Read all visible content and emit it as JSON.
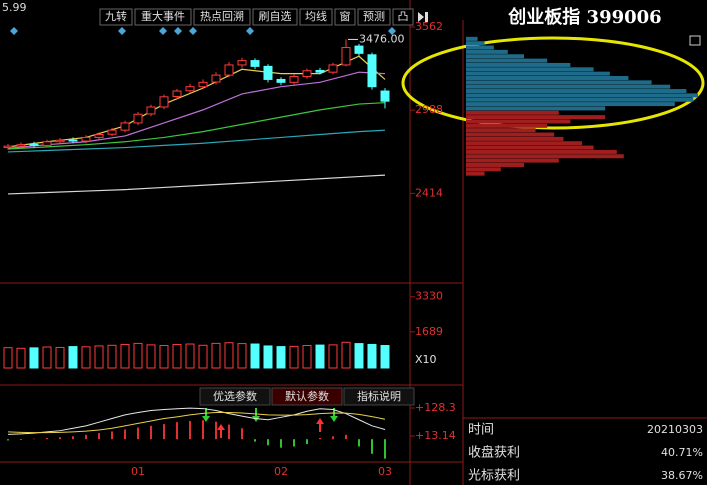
{
  "toolbar": {
    "left_value": "5.99",
    "buttons": [
      "九转",
      "重大事件",
      "热点回溯",
      "刷自选",
      "均线",
      "窗",
      "预测",
      "凸"
    ]
  },
  "chart_data": [
    {
      "type": "candlestick",
      "open": [
        2730,
        2740,
        2752,
        2745,
        2770,
        2782,
        2775,
        2800,
        2822,
        2850,
        2900,
        2962,
        3010,
        3082,
        3122,
        3150,
        3182,
        3230,
        3300,
        3330,
        3290,
        3200,
        3180,
        3220,
        3262,
        3250,
        3300,
        3430,
        3370,
        3120
      ],
      "high": [
        2755,
        2765,
        2770,
        2785,
        2795,
        2800,
        2815,
        2835,
        2865,
        2915,
        2975,
        3025,
        3095,
        3135,
        3170,
        3200,
        3250,
        3320,
        3350,
        3345,
        3305,
        3215,
        3235,
        3275,
        3280,
        3315,
        3476,
        3445,
        3385,
        3140
      ],
      "low": [
        2715,
        2725,
        2730,
        2735,
        2755,
        2760,
        2760,
        2785,
        2810,
        2835,
        2885,
        2945,
        2995,
        3065,
        3105,
        3135,
        3165,
        3215,
        3280,
        3270,
        3180,
        3160,
        3165,
        3205,
        3235,
        3235,
        3290,
        3360,
        3130,
        3000
      ],
      "close": [
        2740,
        2750,
        2745,
        2770,
        2780,
        2775,
        2800,
        2820,
        2850,
        2900,
        2960,
        3010,
        3080,
        3120,
        3150,
        3180,
        3230,
        3300,
        3330,
        3290,
        3200,
        3180,
        3220,
        3260,
        3250,
        3300,
        3420,
        3380,
        3150,
        3050
      ],
      "up_color": "#ff3c3c",
      "down_color": "#54ffff",
      "categories": [
        null,
        null,
        null,
        null,
        null,
        null,
        null,
        null,
        null,
        null,
        "01",
        null,
        null,
        null,
        null,
        null,
        null,
        null,
        null,
        null,
        null,
        "02",
        null,
        null,
        null,
        null,
        null,
        null,
        null,
        "03"
      ],
      "ylim": [
        1851,
        3610
      ],
      "yticks": [
        2414,
        2988,
        3562
      ],
      "annotation": {
        "value": 3476,
        "label": "3476.00"
      },
      "lines": [
        {
          "color": "#e8d04a",
          "x": [
            0,
            3,
            6,
            9,
            12,
            15,
            18,
            21,
            24,
            27,
            29
          ],
          "values": [
            2735,
            2770,
            2800,
            2880,
            3030,
            3140,
            3270,
            3240,
            3240,
            3360,
            3200
          ]
        },
        {
          "color": "#c070d8",
          "x": [
            0,
            3,
            6,
            9,
            12,
            15,
            18,
            21,
            24,
            27,
            29
          ],
          "values": [
            2725,
            2750,
            2770,
            2810,
            2900,
            2990,
            3100,
            3150,
            3180,
            3250,
            3240
          ]
        },
        {
          "color": "#3cc83c",
          "x": [
            0,
            3,
            6,
            9,
            12,
            15,
            18,
            21,
            24,
            27,
            29
          ],
          "values": [
            2720,
            2735,
            2750,
            2770,
            2800,
            2840,
            2890,
            2940,
            2990,
            3030,
            3040
          ]
        },
        {
          "color": "#2aa8b8",
          "x": [
            0,
            3,
            6,
            9,
            12,
            15,
            18,
            21,
            24,
            27,
            29
          ],
          "values": [
            2700,
            2710,
            2720,
            2730,
            2745,
            2760,
            2780,
            2800,
            2820,
            2840,
            2850
          ]
        },
        {
          "color": "#d8d8d8",
          "x": [
            0,
            3,
            6,
            9,
            12,
            15,
            18,
            21,
            24,
            27,
            29
          ],
          "values": [
            2410,
            2420,
            2430,
            2440,
            2455,
            2470,
            2485,
            2500,
            2515,
            2530,
            2540
          ]
        }
      ]
    },
    {
      "type": "bar",
      "ylabel": "X10",
      "values": [
        950,
        920,
        940,
        980,
        960,
        1000,
        990,
        1030,
        1060,
        1100,
        1150,
        1080,
        1050,
        1100,
        1120,
        1060,
        1150,
        1180,
        1140,
        1120,
        1030,
        1000,
        1010,
        1050,
        1070,
        1080,
        1200,
        1140,
        1100,
        1050
      ],
      "ylim": [
        0,
        3877
      ],
      "yticks": [
        1689,
        3330
      ]
    },
    {
      "type": "histogram-lines",
      "tabs": [
        "优选参数",
        "默认参数",
        "指标说明"
      ],
      "values": [
        -5,
        -3,
        2,
        5,
        8,
        12,
        18,
        25,
        32,
        40,
        48,
        55,
        62,
        70,
        75,
        78,
        72,
        60,
        45,
        -10,
        -25,
        -35,
        -30,
        -20,
        5,
        12,
        18,
        -30,
        -60,
        -80
      ],
      "up_color": "#e03030",
      "down_color": "#30c030",
      "lines": [
        {
          "color": "#e8e8e8",
          "values": [
            20,
            22,
            25,
            30,
            35,
            45,
            55,
            70,
            85,
            100,
            110,
            118,
            122,
            125,
            128,
            126,
            118,
            105,
            95,
            85,
            80,
            90,
            100,
            115,
            125,
            122,
            105,
            80,
            55,
            40
          ]
        },
        {
          "color": "#e8d04a",
          "values": [
            30,
            28,
            27,
            27,
            28,
            30,
            33,
            38,
            45,
            55,
            65,
            75,
            85,
            92,
            100,
            106,
            110,
            110,
            108,
            104,
            100,
            99,
            99,
            101,
            105,
            108,
            107,
            102,
            93,
            82
          ]
        }
      ],
      "ylim": [
        -93.8,
        210.6
      ],
      "yticks": [
        {
          "value": 13.14,
          "label": "+13.14"
        },
        {
          "value": 128.3,
          "label": "+128.3"
        }
      ]
    },
    {
      "type": "horizontal-bar",
      "ylim": [
        1851,
        3610
      ],
      "xlim": [
        0,
        100
      ],
      "series": [
        {
          "color": "#1e6b8a",
          "prices": [
            3480,
            3450,
            3420,
            3390,
            3360,
            3330,
            3300,
            3270,
            3240,
            3210,
            3180,
            3150,
            3120,
            3090,
            3060,
            3030,
            3000
          ],
          "values": [
            5,
            8,
            12,
            18,
            25,
            35,
            45,
            55,
            62,
            70,
            80,
            88,
            95,
            100,
            98,
            90,
            60
          ]
        },
        {
          "color": "#a01e1e",
          "prices": [
            2970,
            2940,
            2910,
            2880,
            2850,
            2820,
            2790,
            2760,
            2730,
            2700,
            2670,
            2640,
            2610,
            2580,
            2550
          ],
          "values": [
            40,
            60,
            45,
            35,
            30,
            38,
            42,
            50,
            55,
            65,
            68,
            40,
            25,
            15,
            8
          ]
        }
      ]
    }
  ],
  "info": {
    "title": "创业板指 399006",
    "rows": [
      [
        "时间",
        "20210303"
      ],
      [
        "收盘获利",
        "40.71%"
      ],
      [
        "光标获利",
        "38.67%"
      ]
    ]
  }
}
